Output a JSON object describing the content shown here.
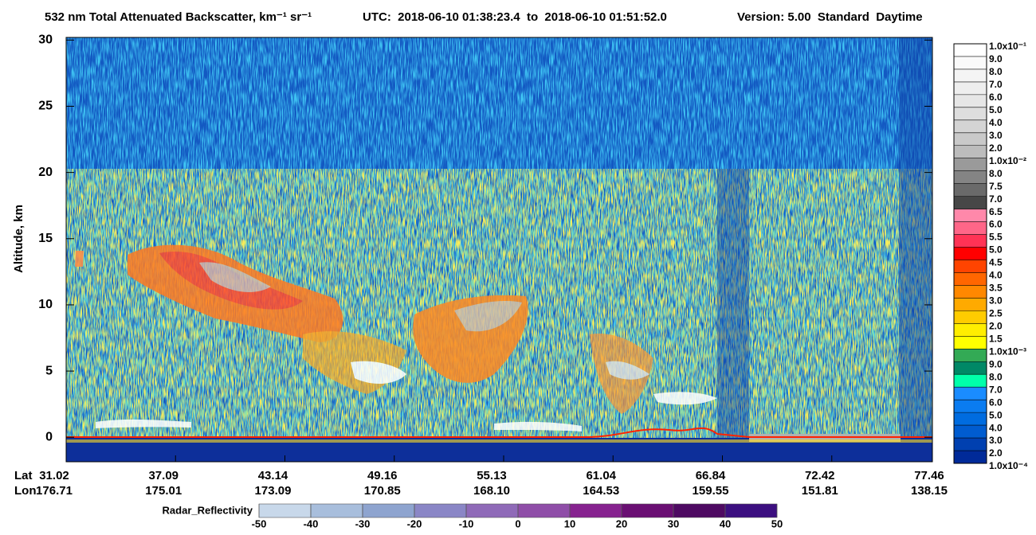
{
  "chart_data": {
    "type": "heatmap",
    "title": "532 nm Total Attenuated Backscatter, km⁻¹ sr⁻¹",
    "time_range": "UTC:  2018-06-10 01:38:23.4  to  2018-06-10 01:51:52.0",
    "version": "Version: 5.00  Standard  Daytime",
    "y_label": "Altitude, km",
    "ylim": [
      -1.85,
      30.2
    ],
    "yticks": [
      0,
      5,
      10,
      15,
      20,
      25,
      30
    ],
    "lat_label": "Lat",
    "lon_label": "Lon",
    "lat": [
      "31.02",
      "37.09",
      "43.14",
      "49.16",
      "55.13",
      "61.04",
      "66.84",
      "72.42",
      "77.46"
    ],
    "lon": [
      "176.71",
      "175.01",
      "173.09",
      "170.85",
      "168.10",
      "164.53",
      "159.55",
      "151.81",
      "138.15"
    ],
    "colorbar": {
      "labels": [
        "1.0x10⁻¹",
        "9.0",
        "8.0",
        "7.0",
        "6.0",
        "5.0",
        "4.0",
        "3.0",
        "2.0",
        "1.0x10⁻²",
        "8.0",
        "7.5",
        "7.0",
        "6.5",
        "6.0",
        "5.5",
        "5.0",
        "4.5",
        "4.0",
        "3.5",
        "3.0",
        "2.5",
        "2.0",
        "1.5",
        "1.0x10⁻³",
        "9.0",
        "8.0",
        "7.0",
        "6.0",
        "5.0",
        "4.0",
        "3.0",
        "2.0",
        "1.0x10⁻⁴"
      ],
      "colors": [
        "#ffffff",
        "#fafafa",
        "#f4f4f4",
        "#eeeeee",
        "#e6e6e6",
        "#dedede",
        "#d4d4d4",
        "#c9c9c9",
        "#bcbcbc",
        "#9a9a9a",
        "#848484",
        "#6a6a6a",
        "#474747",
        "#ff88aa",
        "#ff6688",
        "#ff3355",
        "#ff0000",
        "#ff4400",
        "#ff6600",
        "#ff8800",
        "#ffaa00",
        "#ffcc00",
        "#ffee00",
        "#ffff00",
        "#33aa55",
        "#008866",
        "#00ffaa",
        "#1a8cff",
        "#0a7cf0",
        "#006ce0",
        "#005cd0",
        "#0040b0",
        "#002a99"
      ]
    },
    "radar": {
      "label": "Radar_Reflectivity",
      "xlim": [
        -50,
        50
      ],
      "xticks": [
        -50,
        -40,
        -30,
        -20,
        -10,
        0,
        10,
        20,
        30,
        40,
        50
      ],
      "colors": [
        "#c8d8ea",
        "#a8bedc",
        "#8ea4cf",
        "#8a86c6",
        "#8f6ab8",
        "#8f4ea8",
        "#86228f",
        "#6a0f73",
        "#4e0a62",
        "#3c0f80"
      ]
    }
  }
}
